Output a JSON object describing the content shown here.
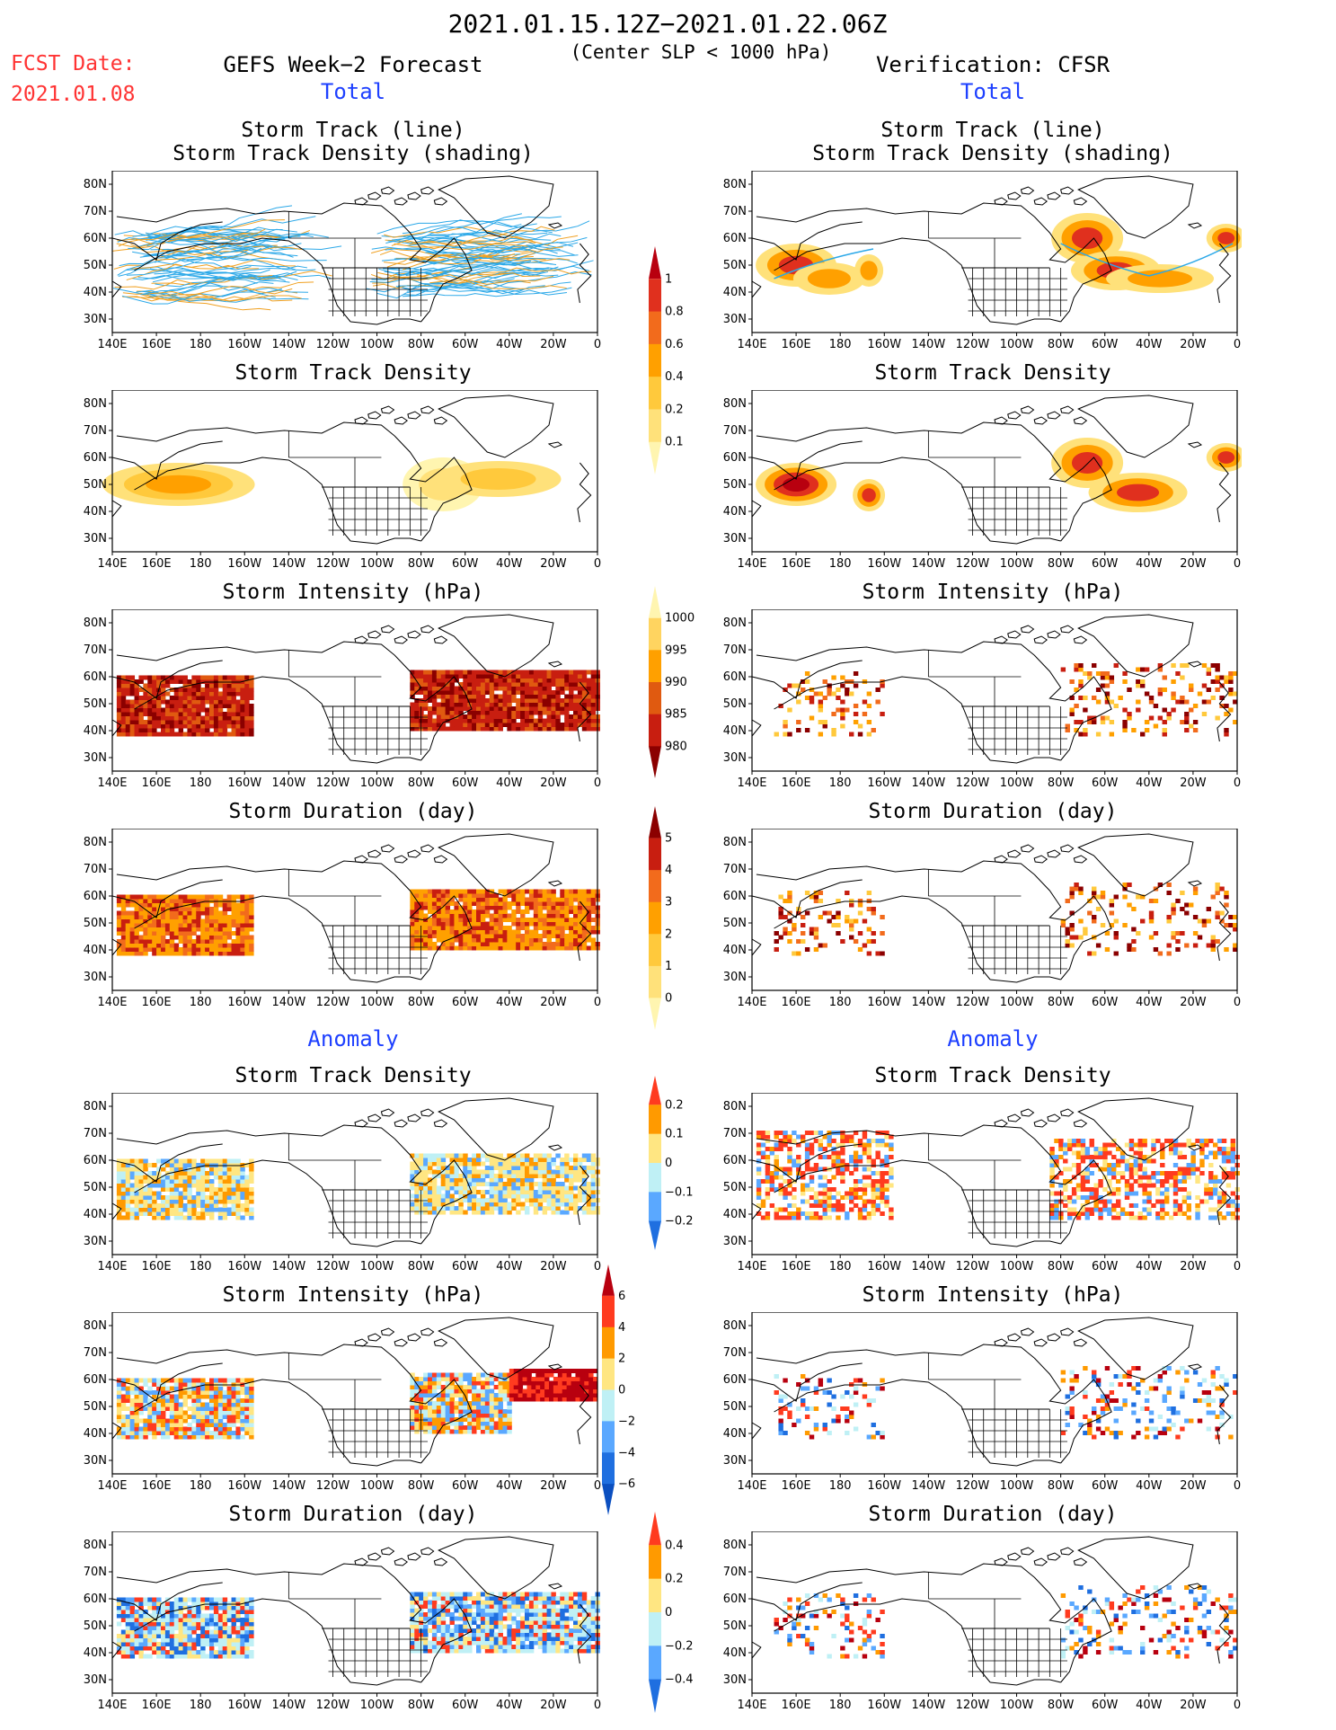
{
  "header": {
    "title": "2021.01.15.12Z−2021.01.22.06Z",
    "subtitle": "(Center SLP < 1000 hPa)",
    "fcst_date_label": "FCST Date:",
    "fcst_date_value": "2021.01.08",
    "left_column_title": "GEFS Week−2 Forecast",
    "right_column_title": "Verification: CFSR",
    "section_total": "Total",
    "section_anomaly": "Anomaly"
  },
  "axes": {
    "lat_labels": [
      "80N",
      "70N",
      "60N",
      "50N",
      "40N",
      "30N"
    ],
    "lon_labels": [
      "140E",
      "160E",
      "180",
      "160W",
      "140W",
      "120W",
      "100W",
      "80W",
      "60W",
      "40W",
      "20W",
      "0"
    ]
  },
  "panels": [
    {
      "id": "track-total",
      "title_line1": "Storm Track (line)",
      "title_line2": "Storm Track Density (shading)"
    },
    {
      "id": "density-total",
      "title_line1": "Storm Track Density"
    },
    {
      "id": "intensity-total",
      "title_line1": "Storm Intensity (hPa)"
    },
    {
      "id": "duration-total",
      "title_line1": "Storm Duration (day)"
    },
    {
      "id": "density-anom",
      "title_line1": "Storm Track Density"
    },
    {
      "id": "intensity-anom",
      "title_line1": "Storm Intensity (hPa)"
    },
    {
      "id": "duration-anom",
      "title_line1": "Storm Duration (day)"
    }
  ],
  "colorbars": [
    {
      "id": "cb-density",
      "labels": [
        "1",
        "0.8",
        "0.6",
        "0.4",
        "0.2",
        "0.1"
      ],
      "colors": [
        "#b8000f",
        "#e0301e",
        "#f26b1c",
        "#ffa000",
        "#ffc93c",
        "#ffe17a",
        "#fff5b0"
      ]
    },
    {
      "id": "cb-intensity",
      "labels": [
        "1000",
        "995",
        "990",
        "985",
        "980"
      ],
      "colors": [
        "#fff5b0",
        "#ffd460",
        "#ffa000",
        "#e05a10",
        "#c81e10",
        "#8b0000"
      ]
    },
    {
      "id": "cb-duration",
      "labels": [
        "5",
        "4",
        "3",
        "2",
        "1",
        "0"
      ],
      "colors": [
        "#8b0000",
        "#c81e10",
        "#f26b1c",
        "#ffa000",
        "#ffc93c",
        "#ffe17a",
        "#fff5b0"
      ]
    },
    {
      "id": "cb-anom-density",
      "labels": [
        "0.2",
        "0.1",
        "0",
        "−0.1",
        "−0.2"
      ],
      "colors": [
        "#ff3b1f",
        "#ff9a00",
        "#ffe682",
        "#bff0f5",
        "#5aa8ff",
        "#1f6fe0"
      ]
    },
    {
      "id": "cb-anom-intensity",
      "labels": [
        "6",
        "4",
        "2",
        "0",
        "−2",
        "−4",
        "−6"
      ],
      "colors": [
        "#b8000f",
        "#ff3b1f",
        "#ff9a00",
        "#ffe682",
        "#bff0f5",
        "#5aa8ff",
        "#1f6fe0",
        "#0b4fc0"
      ]
    },
    {
      "id": "cb-anom-duration",
      "labels": [
        "0.4",
        "0.2",
        "0",
        "−0.2",
        "−0.4"
      ],
      "colors": [
        "#ff3b1f",
        "#ff9a00",
        "#ffe682",
        "#bff0f5",
        "#5aa8ff",
        "#1f6fe0"
      ]
    }
  ],
  "colors": {
    "track_line": "#2ba8e8",
    "track_orange": "#f0a020",
    "coast": "#000000"
  }
}
